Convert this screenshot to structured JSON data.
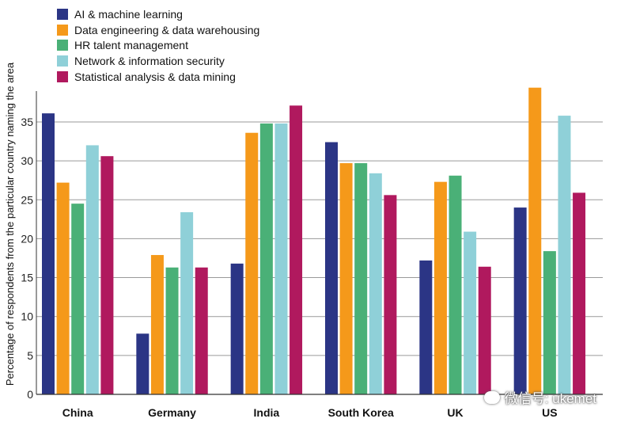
{
  "chart_data": {
    "type": "bar",
    "title": "",
    "xlabel": "",
    "ylabel": "Percentage of respondents from the particular country naming the area",
    "ylim": [
      0,
      40
    ],
    "yticks": [
      0,
      5,
      10,
      15,
      20,
      25,
      30,
      35
    ],
    "grid": true,
    "legend_position": "top-left",
    "categories": [
      "China",
      "Germany",
      "India",
      "South Korea",
      "UK",
      "US"
    ],
    "series": [
      {
        "name": "AI & machine learning",
        "color": "#2b3585",
        "values": [
          36.1,
          7.8,
          16.8,
          32.4,
          17.2,
          24.0
        ]
      },
      {
        "name": "Data engineering & data warehousing",
        "color": "#f5991a",
        "values": [
          27.2,
          17.9,
          33.6,
          29.7,
          27.3,
          39.4
        ]
      },
      {
        "name": "HR talent management",
        "color": "#4ab077",
        "values": [
          24.5,
          16.3,
          34.8,
          29.7,
          28.1,
          18.4
        ]
      },
      {
        "name": "Network & information security",
        "color": "#8fd0d8",
        "values": [
          32.0,
          23.4,
          34.8,
          28.4,
          20.9,
          35.8
        ]
      },
      {
        "name": "Statistical analysis & data mining",
        "color": "#b0195e",
        "values": [
          30.6,
          16.3,
          37.1,
          25.6,
          16.4,
          25.9
        ]
      }
    ]
  },
  "watermark": {
    "text": "微信号: ukemet"
  }
}
